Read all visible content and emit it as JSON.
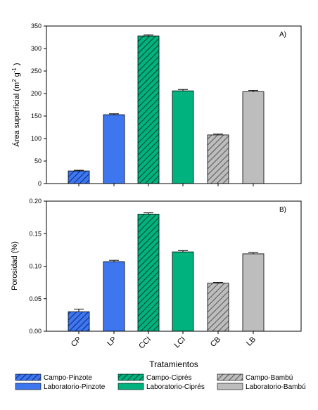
{
  "chart_data": [
    {
      "type": "bar",
      "panel_label": "A)",
      "ylabel_main": "Área superficial (m",
      "ylabel_sup1": "2",
      "ylabel_mid": " g",
      "ylabel_sup2": "-1",
      "ylabel_end": " )",
      "categories": [
        "CP",
        "LP",
        "CCI",
        "LCI",
        "CB",
        "LB"
      ],
      "values": [
        28,
        153,
        328,
        206,
        108,
        204
      ],
      "errors": [
        1.5,
        2,
        2,
        3,
        2,
        3
      ],
      "ylim": [
        0,
        350
      ],
      "yticks": [
        "0",
        "50",
        "100",
        "150",
        "200",
        "250",
        "300",
        "350"
      ],
      "tick_values": [
        0,
        50,
        100,
        150,
        200,
        250,
        300,
        350
      ]
    },
    {
      "type": "bar",
      "panel_label": "B)",
      "ylabel": "Porosidad (%)",
      "categories": [
        "CP",
        "LP",
        "CCI",
        "LCI",
        "CB",
        "LB"
      ],
      "values": [
        0.03,
        0.107,
        0.18,
        0.122,
        0.074,
        0.119
      ],
      "errors": [
        0.004,
        0.002,
        0.002,
        0.002,
        0.001,
        0.002
      ],
      "ylim": [
        0,
        0.2
      ],
      "yticks": [
        "0.00",
        "0.05",
        "0.10",
        "0.15",
        "0.20"
      ],
      "tick_values": [
        0,
        0.05,
        0.1,
        0.15,
        0.2
      ]
    }
  ],
  "xlabel": "Tratamientos",
  "series_styles": [
    {
      "color": "#3d76ef",
      "hatched": true
    },
    {
      "color": "#3d76ef",
      "hatched": false
    },
    {
      "color": "#00b27e",
      "hatched": true
    },
    {
      "color": "#00b27e",
      "hatched": false
    },
    {
      "color": "#bdbdbd",
      "hatched": true
    },
    {
      "color": "#bdbdbd",
      "hatched": false
    }
  ],
  "legend": [
    {
      "label": "Campo-Pinzote",
      "color": "#3d76ef",
      "hatched": true
    },
    {
      "label": "Campo-Ciprés",
      "color": "#00b27e",
      "hatched": true
    },
    {
      "label": "Campo-Bambú",
      "color": "#bdbdbd",
      "hatched": true
    },
    {
      "label": "Laboratorio-Pinzote",
      "color": "#3d76ef",
      "hatched": false
    },
    {
      "label": "Laboratorio-Ciprés",
      "color": "#00b27e",
      "hatched": false
    },
    {
      "label": "Laboratorio-Bambú",
      "color": "#bdbdbd",
      "hatched": false
    }
  ]
}
